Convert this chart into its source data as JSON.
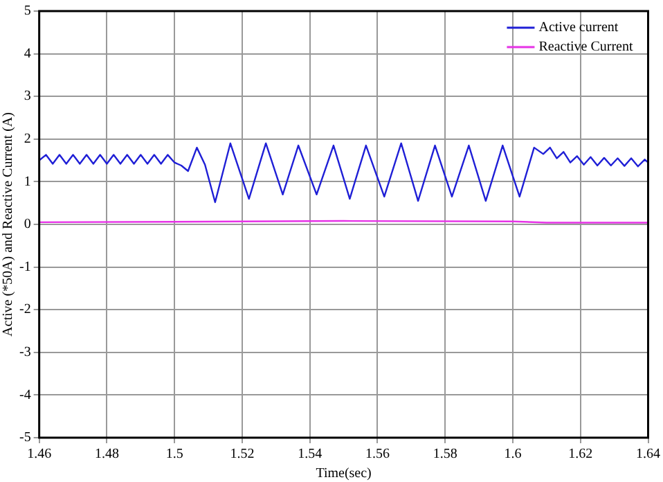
{
  "chart_data": {
    "type": "line",
    "xlabel": "Time(sec)",
    "ylabel": "Active (*50A) and Reactive Current (A)",
    "xlim": [
      1.46,
      1.64
    ],
    "xticks": [
      1.46,
      1.48,
      1.5,
      1.52,
      1.54,
      1.56,
      1.58,
      1.6,
      1.62,
      1.64
    ],
    "ylim": [
      -5,
      5
    ],
    "yticks": [
      -5,
      -4,
      -3,
      -2,
      -1,
      0,
      1,
      2,
      3,
      4,
      5
    ],
    "grid": true,
    "legend": "top right",
    "marker": "none",
    "line_style": "solid",
    "series": [
      {
        "name": "Active current",
        "color": "#1f1fd6",
        "x": [
          1.46,
          1.462,
          1.464,
          1.466,
          1.468,
          1.47,
          1.472,
          1.474,
          1.476,
          1.478,
          1.48,
          1.482,
          1.484,
          1.486,
          1.488,
          1.49,
          1.492,
          1.494,
          1.496,
          1.498,
          1.5,
          1.502,
          1.504,
          1.5066,
          1.509,
          1.512,
          1.5165,
          1.522,
          1.527,
          1.532,
          1.5366,
          1.542,
          1.547,
          1.5518,
          1.5566,
          1.562,
          1.567,
          1.572,
          1.577,
          1.582,
          1.587,
          1.592,
          1.597,
          1.602,
          1.6063,
          1.609,
          1.611,
          1.613,
          1.615,
          1.617,
          1.619,
          1.621,
          1.623,
          1.625,
          1.627,
          1.629,
          1.631,
          1.633,
          1.635,
          1.637,
          1.639,
          1.64
        ],
        "values": [
          1.5,
          1.63,
          1.42,
          1.63,
          1.42,
          1.63,
          1.42,
          1.63,
          1.42,
          1.63,
          1.42,
          1.63,
          1.42,
          1.63,
          1.42,
          1.63,
          1.42,
          1.63,
          1.42,
          1.63,
          1.45,
          1.38,
          1.25,
          1.8,
          1.4,
          0.52,
          1.9,
          0.6,
          1.9,
          0.7,
          1.85,
          0.7,
          1.85,
          0.6,
          1.85,
          0.65,
          1.9,
          0.55,
          1.85,
          0.65,
          1.85,
          0.55,
          1.85,
          0.65,
          1.8,
          1.65,
          1.8,
          1.55,
          1.7,
          1.45,
          1.6,
          1.4,
          1.58,
          1.38,
          1.56,
          1.38,
          1.55,
          1.37,
          1.55,
          1.36,
          1.52,
          1.45
        ]
      },
      {
        "name": "Reactive Current",
        "color": "#e632e6",
        "x": [
          1.46,
          1.5,
          1.55,
          1.6,
          1.61,
          1.64
        ],
        "values": [
          0.05,
          0.06,
          0.08,
          0.07,
          0.04,
          0.04
        ]
      }
    ]
  }
}
